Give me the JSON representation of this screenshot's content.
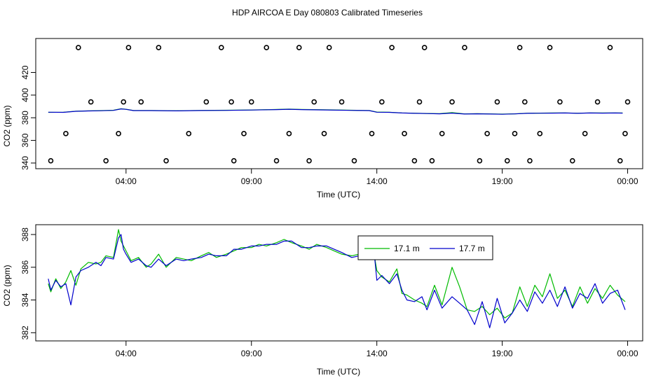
{
  "title": "HDP AIRCOA E  Day 080803  Calibrated Timeseries",
  "chart_data": [
    {
      "type": "line",
      "xlabel": "Time (UTC)",
      "ylabel": "CO2 (ppm)",
      "xlim": [
        0.4,
        24.6
      ],
      "ylim": [
        335,
        450
      ],
      "xticks": [
        {
          "value": 4,
          "label": "04:00"
        },
        {
          "value": 9,
          "label": "09:00"
        },
        {
          "value": 14,
          "label": "14:00"
        },
        {
          "value": 19,
          "label": "19:00"
        },
        {
          "value": 24,
          "label": "00:00"
        }
      ],
      "yticks": [
        {
          "value": 340,
          "label": "340"
        },
        {
          "value": 360,
          "label": "360"
        },
        {
          "value": 380,
          "label": "380"
        },
        {
          "value": 400,
          "label": "400"
        },
        {
          "value": 420,
          "label": "420"
        }
      ],
      "colors": {
        "green": "#00bb00",
        "blue": "#0000cc"
      },
      "series": [
        {
          "x": [
            0.9,
            1.5,
            2.0,
            2.5,
            3.0,
            3.5,
            3.8,
            4.0,
            4.3,
            5.0,
            6.0,
            7.0,
            8.0,
            9.0,
            10.0,
            10.5,
            11.0,
            12.0,
            13.0,
            13.7,
            14.0,
            14.5,
            15.0,
            15.5,
            16.0,
            16.5,
            17.0,
            17.5,
            18.0,
            18.5,
            19.0,
            19.5,
            20.0,
            20.5,
            21.0,
            21.5,
            22.0,
            22.5,
            23.0,
            23.5,
            23.8
          ],
          "y": [
            384.8,
            384.9,
            385.8,
            386.1,
            386.3,
            386.6,
            387.9,
            387.5,
            386.4,
            386.4,
            386.2,
            386.5,
            386.6,
            386.9,
            387.3,
            387.6,
            387.3,
            387.0,
            386.6,
            386.4,
            385.0,
            384.9,
            384.3,
            384.0,
            383.8,
            383.6,
            384.6,
            383.4,
            383.6,
            383.4,
            383.2,
            383.5,
            384.0,
            384.1,
            384.2,
            384.3,
            384.0,
            384.3,
            384.2,
            384.3,
            384.2
          ]
        },
        {
          "x": [
            0.9,
            1.5,
            2.0,
            2.5,
            3.0,
            3.5,
            3.8,
            4.0,
            4.3,
            5.0,
            6.0,
            7.0,
            8.0,
            9.0,
            10.0,
            10.5,
            11.0,
            12.0,
            13.0,
            13.7,
            14.0,
            14.5,
            15.0,
            15.5,
            16.0,
            16.5,
            17.0,
            17.5,
            18.0,
            18.5,
            19.0,
            19.5,
            20.0,
            20.5,
            21.0,
            21.5,
            22.0,
            22.5,
            23.0,
            23.5,
            23.8
          ],
          "y": [
            384.9,
            384.8,
            385.7,
            386.0,
            386.2,
            386.5,
            387.8,
            387.4,
            386.3,
            386.3,
            386.1,
            386.4,
            386.5,
            386.8,
            387.2,
            387.5,
            387.2,
            386.9,
            386.5,
            386.3,
            384.9,
            384.8,
            384.2,
            383.9,
            383.7,
            383.5,
            384.1,
            383.3,
            383.5,
            383.3,
            383.1,
            383.4,
            383.9,
            384.0,
            384.1,
            384.2,
            383.9,
            384.2,
            384.1,
            384.2,
            384.1
          ]
        }
      ],
      "calibration_points": {
        "x": [
          1.0,
          1.6,
          2.1,
          2.6,
          3.2,
          3.7,
          3.9,
          4.1,
          4.6,
          5.3,
          5.6,
          6.5,
          7.2,
          7.8,
          8.2,
          8.3,
          8.7,
          9.0,
          9.6,
          10.0,
          10.5,
          10.9,
          11.3,
          11.5,
          11.9,
          12.1,
          12.6,
          13.1,
          13.8,
          14.2,
          14.6,
          15.1,
          15.5,
          15.7,
          15.9,
          16.2,
          16.6,
          17.0,
          17.5,
          18.1,
          18.4,
          18.8,
          19.2,
          19.5,
          19.7,
          19.9,
          20.1,
          20.5,
          20.9,
          21.3,
          21.8,
          22.3,
          22.8,
          23.3,
          23.7,
          23.9,
          24.0
        ],
        "y": [
          342,
          366,
          442,
          394,
          342,
          366,
          394,
          442,
          394,
          442,
          342,
          366,
          394,
          442,
          394,
          342,
          366,
          394,
          442,
          342,
          366,
          442,
          342,
          394,
          366,
          442,
          394,
          342,
          366,
          394,
          442,
          366,
          342,
          394,
          442,
          342,
          366,
          394,
          442,
          342,
          366,
          394,
          342,
          366,
          442,
          394,
          342,
          366,
          442,
          394,
          342,
          366,
          394,
          442,
          342,
          366,
          394
        ]
      }
    },
    {
      "type": "line",
      "xlabel": "Time (UTC)",
      "ylabel": "CO2 (ppm)",
      "xlim": [
        0.4,
        24.6
      ],
      "ylim": [
        381.5,
        388.6
      ],
      "xticks": [
        {
          "value": 4,
          "label": "04:00"
        },
        {
          "value": 9,
          "label": "09:00"
        },
        {
          "value": 14,
          "label": "14:00"
        },
        {
          "value": 19,
          "label": "19:00"
        },
        {
          "value": 24,
          "label": "00:00"
        }
      ],
      "yticks": [
        {
          "value": 382,
          "label": "382"
        },
        {
          "value": 384,
          "label": "384"
        },
        {
          "value": 386,
          "label": "386"
        },
        {
          "value": 388,
          "label": "388"
        }
      ],
      "legend_position": "top-center",
      "series": [
        {
          "name": "17.1 m",
          "color": "#00bb00",
          "x": [
            0.9,
            1.0,
            1.2,
            1.4,
            1.6,
            1.8,
            2.0,
            2.2,
            2.5,
            2.8,
            3.0,
            3.2,
            3.5,
            3.7,
            3.8,
            3.9,
            4.0,
            4.2,
            4.5,
            4.8,
            5.0,
            5.3,
            5.6,
            6.0,
            6.3,
            6.6,
            7.0,
            7.3,
            7.6,
            8.0,
            8.3,
            8.6,
            9.0,
            9.3,
            9.6,
            10.0,
            10.3,
            10.6,
            11.0,
            11.3,
            11.6,
            12.0,
            12.3,
            12.6,
            13.0,
            13.3,
            13.6,
            13.9,
            14.0,
            14.2,
            14.5,
            14.8,
            15.0,
            15.2,
            15.5,
            15.8,
            16.0,
            16.3,
            16.6,
            17.0,
            17.3,
            17.6,
            17.9,
            18.2,
            18.5,
            18.8,
            19.1,
            19.4,
            19.7,
            20.0,
            20.3,
            20.6,
            20.9,
            21.2,
            21.5,
            21.8,
            22.1,
            22.4,
            22.7,
            23.0,
            23.3,
            23.6,
            23.9
          ],
          "y": [
            385.0,
            384.5,
            385.3,
            384.7,
            385.1,
            385.8,
            384.9,
            385.9,
            386.3,
            386.2,
            386.3,
            386.7,
            386.6,
            388.3,
            387.6,
            387.3,
            387.0,
            386.4,
            386.6,
            386.0,
            386.2,
            386.8,
            386.0,
            386.6,
            386.5,
            386.4,
            386.7,
            386.9,
            386.6,
            386.8,
            387.0,
            387.2,
            387.2,
            387.4,
            387.3,
            387.5,
            387.7,
            387.5,
            387.3,
            387.1,
            387.4,
            387.2,
            387.0,
            386.8,
            386.7,
            386.8,
            386.6,
            386.7,
            385.8,
            385.4,
            385.1,
            385.9,
            384.4,
            384.3,
            384.0,
            383.8,
            383.6,
            384.9,
            383.7,
            386.0,
            384.8,
            383.4,
            383.3,
            383.6,
            383.1,
            383.5,
            382.9,
            383.2,
            384.8,
            383.6,
            384.9,
            384.2,
            385.6,
            384.1,
            384.6,
            383.6,
            384.8,
            383.8,
            384.7,
            384.1,
            384.9,
            384.3,
            383.9
          ]
        },
        {
          "name": "17.7 m",
          "color": "#0000cc",
          "x": [
            0.9,
            1.0,
            1.2,
            1.4,
            1.6,
            1.8,
            2.0,
            2.2,
            2.5,
            2.8,
            3.0,
            3.2,
            3.5,
            3.7,
            3.8,
            3.9,
            4.0,
            4.2,
            4.5,
            4.8,
            5.0,
            5.3,
            5.6,
            6.0,
            6.3,
            6.6,
            7.0,
            7.3,
            7.6,
            8.0,
            8.3,
            8.6,
            9.0,
            9.3,
            9.6,
            10.0,
            10.3,
            10.6,
            11.0,
            11.3,
            11.6,
            12.0,
            12.3,
            12.6,
            13.0,
            13.3,
            13.6,
            13.9,
            14.0,
            14.2,
            14.5,
            14.8,
            15.0,
            15.2,
            15.5,
            15.8,
            16.0,
            16.3,
            16.6,
            17.0,
            17.3,
            17.6,
            17.9,
            18.2,
            18.5,
            18.8,
            19.1,
            19.4,
            19.7,
            20.0,
            20.3,
            20.6,
            20.9,
            21.2,
            21.5,
            21.8,
            22.1,
            22.4,
            22.7,
            23.0,
            23.3,
            23.6,
            23.9
          ],
          "y": [
            385.3,
            384.6,
            385.2,
            384.8,
            385.0,
            383.7,
            385.4,
            385.8,
            386.0,
            386.3,
            386.1,
            386.6,
            386.5,
            387.8,
            388.0,
            387.1,
            386.8,
            386.3,
            386.5,
            386.1,
            386.0,
            386.5,
            386.1,
            386.5,
            386.4,
            386.5,
            386.6,
            386.8,
            386.7,
            386.7,
            387.1,
            387.1,
            387.3,
            387.3,
            387.4,
            387.4,
            387.6,
            387.6,
            387.2,
            387.2,
            387.3,
            387.3,
            387.1,
            386.9,
            386.6,
            386.7,
            386.5,
            386.8,
            385.2,
            385.5,
            385.0,
            385.6,
            384.6,
            384.0,
            383.9,
            384.2,
            383.4,
            384.6,
            383.5,
            384.2,
            383.8,
            383.4,
            382.5,
            383.9,
            382.3,
            384.1,
            382.6,
            383.2,
            384.0,
            383.3,
            384.5,
            383.8,
            384.6,
            383.6,
            384.8,
            383.5,
            384.4,
            384.1,
            385.0,
            383.8,
            384.4,
            384.6,
            383.4
          ]
        }
      ]
    }
  ]
}
